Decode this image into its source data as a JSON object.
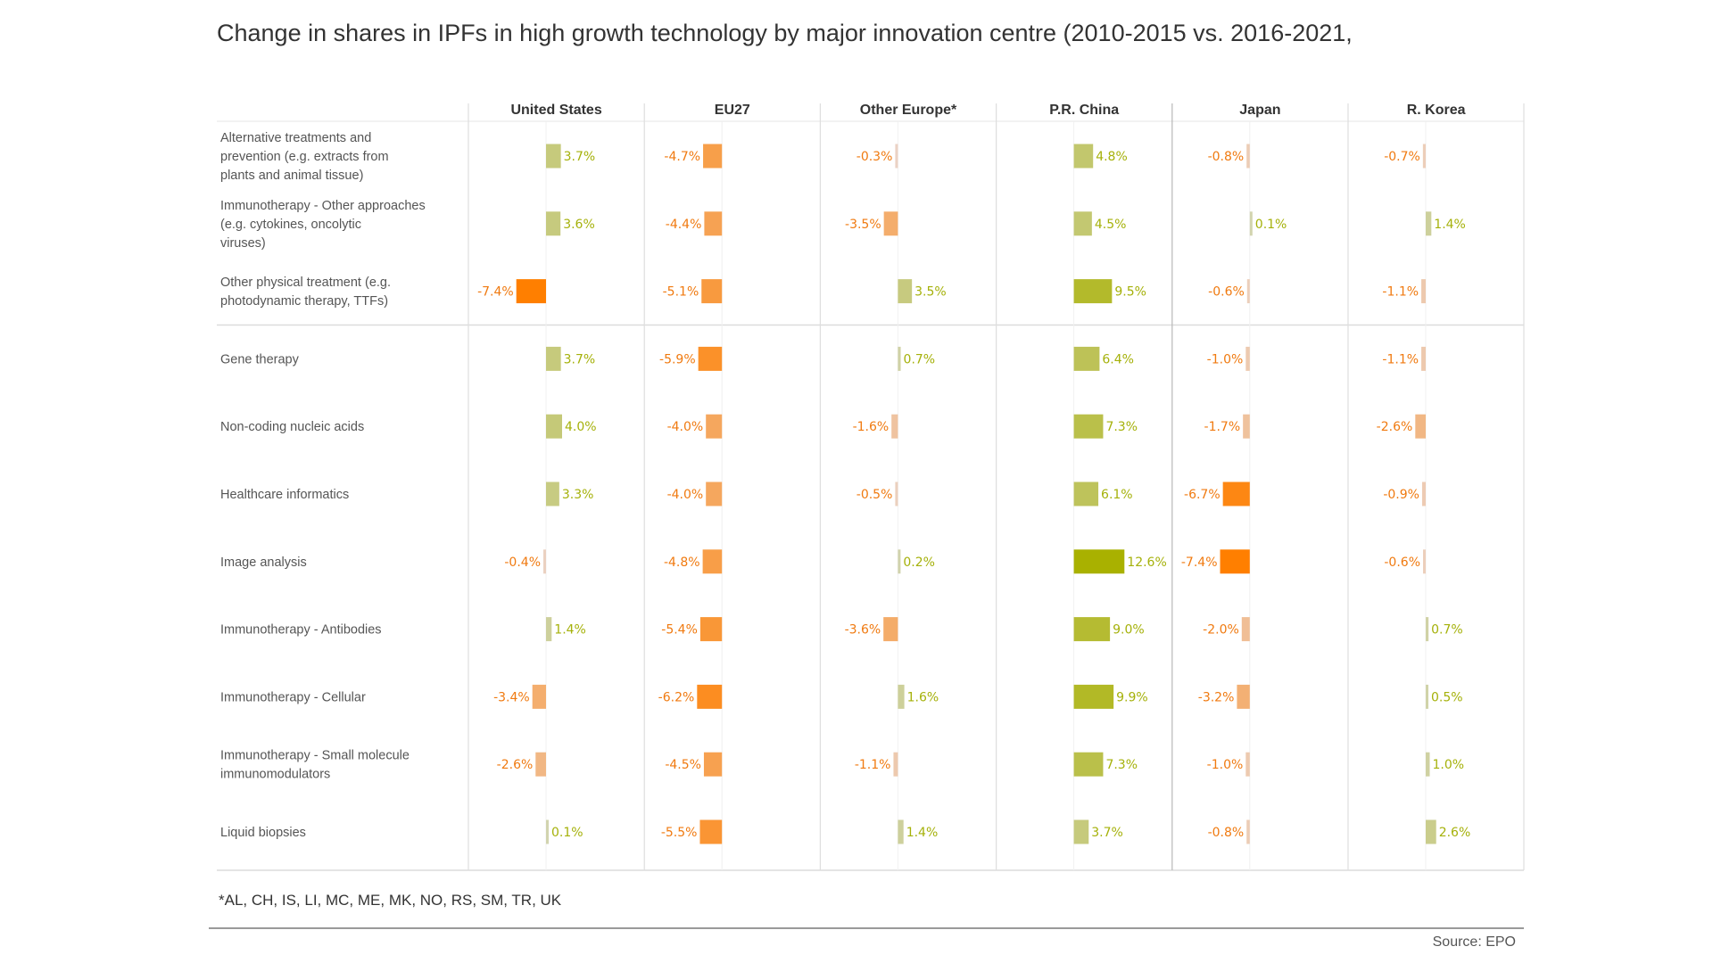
{
  "chart_data": {
    "type": "bar",
    "title": "Change in shares in IPFs in high growth technology by major innovation centre (2010-2015 vs. 2016-2021,",
    "orientation": "horizontal",
    "unit": "%",
    "columns": [
      "United States",
      "EU27",
      "Other Europe*",
      "P.R. China",
      "Japan",
      "R. Korea"
    ],
    "categories": [
      "Alternative treatments and prevention (e.g. extracts from plants and animal tissue)",
      "Immunotherapy - Other approaches (e.g. cytokines, oncolytic viruses)",
      "Other physical treatment (e.g. photodynamic therapy, TTFs)",
      "Gene therapy",
      "Non-coding nucleic acids",
      "Healthcare informatics",
      "Image analysis",
      "Immunotherapy - Antibodies",
      "Immunotherapy - Cellular",
      "Immunotherapy - Small molecule immunomodulators",
      "Liquid biopsies"
    ],
    "group_break_after": 3,
    "values": [
      [
        3.7,
        -4.7,
        -0.3,
        4.8,
        -0.8,
        -0.7
      ],
      [
        3.6,
        -4.4,
        -3.5,
        4.5,
        0.1,
        1.4
      ],
      [
        -7.4,
        -5.1,
        3.5,
        9.5,
        -0.6,
        -1.1
      ],
      [
        3.7,
        -5.9,
        0.7,
        6.4,
        -1.0,
        -1.1
      ],
      [
        4.0,
        -4.0,
        -1.6,
        7.3,
        -1.7,
        -2.6
      ],
      [
        3.3,
        -4.0,
        -0.5,
        6.1,
        -6.7,
        -0.9
      ],
      [
        -0.4,
        -4.8,
        0.2,
        12.6,
        -7.4,
        -0.6
      ],
      [
        1.4,
        -5.4,
        -3.6,
        9.0,
        -2.0,
        0.7
      ],
      [
        -3.4,
        -6.2,
        1.6,
        9.9,
        -3.2,
        0.5
      ],
      [
        -2.6,
        -4.5,
        -1.1,
        7.3,
        -1.0,
        1.0
      ],
      [
        0.1,
        -5.5,
        1.4,
        3.7,
        -0.8,
        2.6
      ]
    ],
    "xlim": [
      -8,
      13
    ],
    "colors": {
      "positive_low": "#d2d4b0",
      "positive_high": "#a9b100",
      "negative_low": "#ead6cc",
      "negative_high": "#ff7f00",
      "positive_text": "#a5b10a",
      "negative_text": "#f07a10"
    }
  },
  "footnote": "*AL, CH, IS, LI, MC, ME, MK, NO, RS, SM, TR, UK",
  "source": "Source: EPO"
}
